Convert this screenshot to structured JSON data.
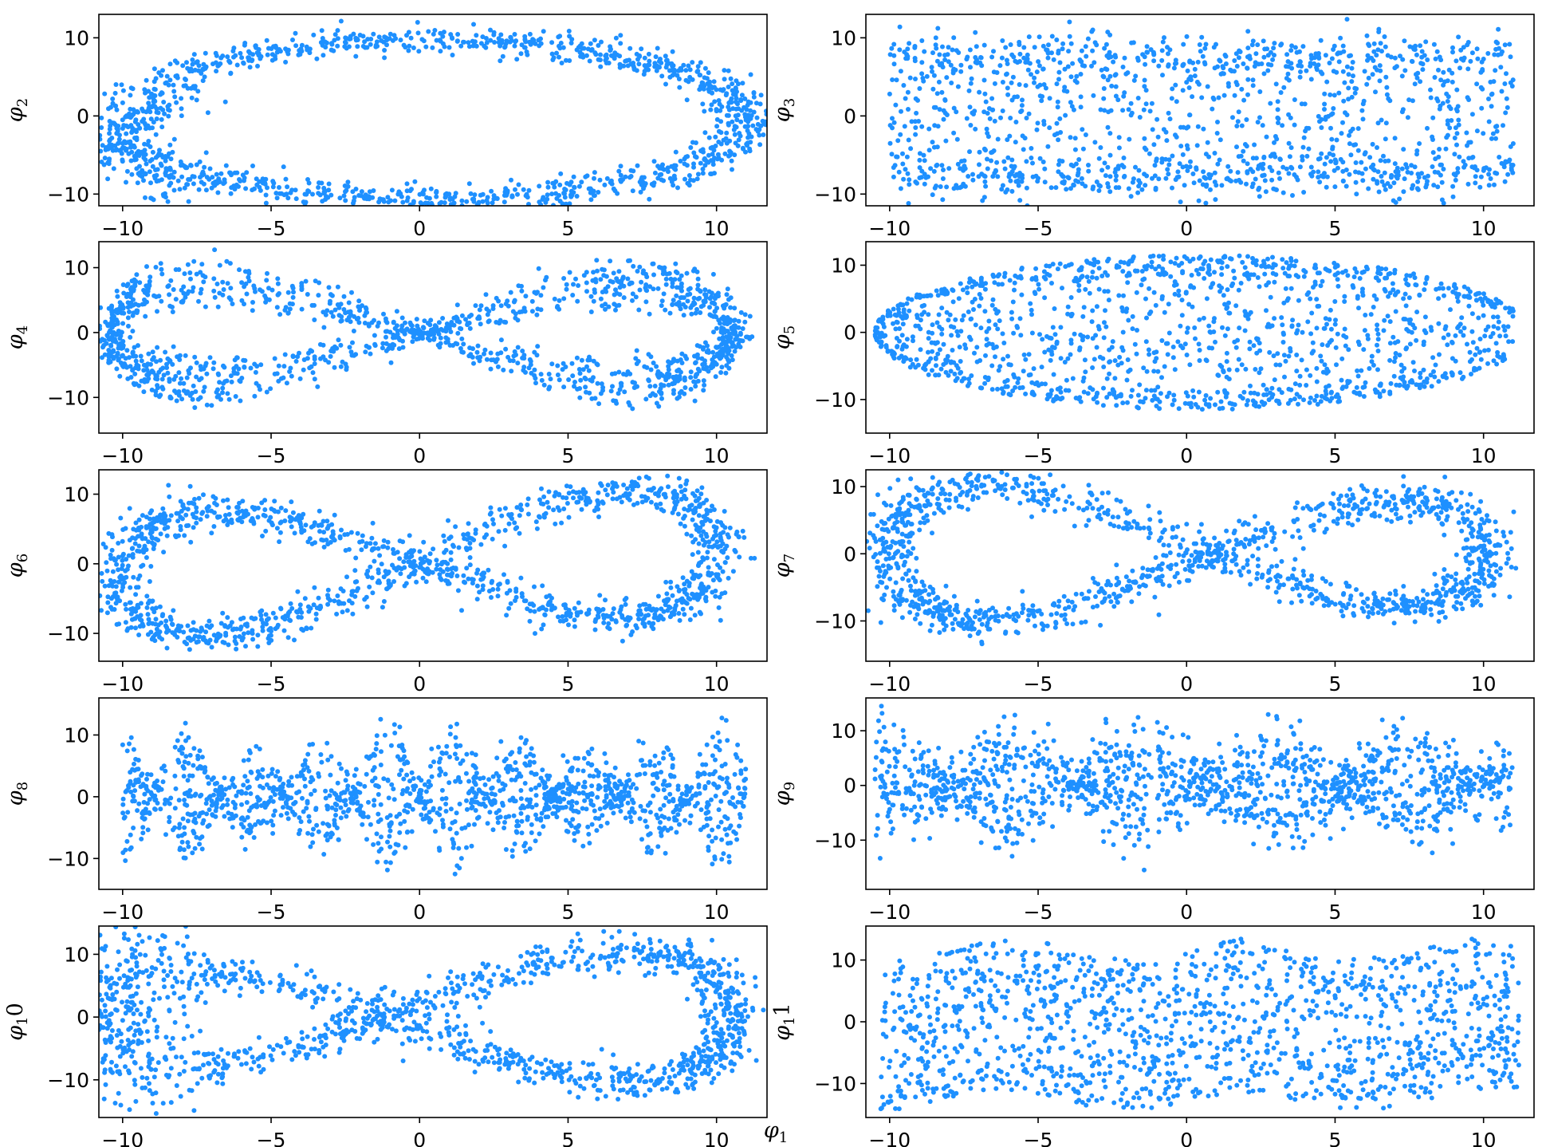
{
  "chart_data": [
    {
      "type": "scatter",
      "ylabel": {
        "symbol": "φ",
        "sub": "2",
        "suffix": ""
      },
      "xlim": [
        -10.8,
        11.7
      ],
      "ylim": [
        -11.5,
        13
      ],
      "xticks": [
        -10,
        -5,
        0,
        5,
        10
      ],
      "xtick_labels": [
        "−10",
        "−5",
        "0",
        "5",
        "10"
      ],
      "yticks": [
        -10,
        0,
        10
      ],
      "ytick_labels": [
        "−10",
        "0",
        "10"
      ],
      "color": "#1E90FF",
      "shape": "ellipse-ring",
      "n_points": 1400
    },
    {
      "type": "scatter",
      "ylabel": {
        "symbol": "φ",
        "sub": "3",
        "suffix": ""
      },
      "xlim": [
        -10.8,
        11.7
      ],
      "ylim": [
        -11.5,
        13
      ],
      "xticks": [
        -10,
        -5,
        0,
        5,
        10
      ],
      "xtick_labels": [
        "−10",
        "−5",
        "0",
        "5",
        "10"
      ],
      "yticks": [
        -10,
        0,
        10
      ],
      "ytick_labels": [
        "−10",
        "0",
        "10"
      ],
      "color": "#1E90FF",
      "shape": "filled-band",
      "n_points": 1400
    },
    {
      "type": "scatter",
      "ylabel": {
        "symbol": "φ",
        "sub": "4",
        "suffix": ""
      },
      "xlim": [
        -10.8,
        11.7
      ],
      "ylim": [
        -15.5,
        14
      ],
      "xticks": [
        -10,
        -5,
        0,
        5,
        10
      ],
      "xtick_labels": [
        "−10",
        "−5",
        "0",
        "5",
        "10"
      ],
      "yticks": [
        -10,
        0,
        10
      ],
      "ytick_labels": [
        "−10",
        "0",
        "10"
      ],
      "color": "#1E90FF",
      "shape": "figure-eight",
      "n_points": 1400
    },
    {
      "type": "scatter",
      "ylabel": {
        "symbol": "φ",
        "sub": "5",
        "suffix": ""
      },
      "xlim": [
        -10.8,
        11.7
      ],
      "ylim": [
        -15,
        13.5
      ],
      "xticks": [
        -10,
        -5,
        0,
        5,
        10
      ],
      "xtick_labels": [
        "−10",
        "−5",
        "0",
        "5",
        "10"
      ],
      "yticks": [
        -10,
        0,
        10
      ],
      "ytick_labels": [
        "−10",
        "0",
        "10"
      ],
      "color": "#1E90FF",
      "shape": "lens",
      "n_points": 1400
    },
    {
      "type": "scatter",
      "ylabel": {
        "symbol": "φ",
        "sub": "6",
        "suffix": ""
      },
      "xlim": [
        -10.8,
        11.7
      ],
      "ylim": [
        -14,
        13.5
      ],
      "xticks": [
        -10,
        -5,
        0,
        5,
        10
      ],
      "xtick_labels": [
        "−10",
        "−5",
        "0",
        "5",
        "10"
      ],
      "yticks": [
        -10,
        0,
        10
      ],
      "ytick_labels": [
        "−10",
        "0",
        "10"
      ],
      "color": "#1E90FF",
      "shape": "twisted-loop",
      "n_points": 1400
    },
    {
      "type": "scatter",
      "ylabel": {
        "symbol": "φ",
        "sub": "7",
        "suffix": ""
      },
      "xlim": [
        -10.8,
        11.7
      ],
      "ylim": [
        -16,
        12.5
      ],
      "xticks": [
        -10,
        -5,
        0,
        5,
        10
      ],
      "xtick_labels": [
        "−10",
        "−5",
        "0",
        "5",
        "10"
      ],
      "yticks": [
        -10,
        0,
        10
      ],
      "ytick_labels": [
        "−10",
        "0",
        "10"
      ],
      "color": "#1E90FF",
      "shape": "twisted-loop-2",
      "n_points": 1400
    },
    {
      "type": "scatter",
      "ylabel": {
        "symbol": "φ",
        "sub": "8",
        "suffix": ""
      },
      "xlim": [
        -10.8,
        11.7
      ],
      "ylim": [
        -15,
        16
      ],
      "xticks": [
        -10,
        -5,
        0,
        5,
        10
      ],
      "xtick_labels": [
        "−10",
        "−5",
        "0",
        "5",
        "10"
      ],
      "yticks": [
        -10,
        0,
        10
      ],
      "ytick_labels": [
        "−10",
        "0",
        "10"
      ],
      "color": "#1E90FF",
      "shape": "multi-lobe",
      "n_points": 1400
    },
    {
      "type": "scatter",
      "ylabel": {
        "symbol": "φ",
        "sub": "9",
        "suffix": ""
      },
      "xlim": [
        -10.8,
        11.7
      ],
      "ylim": [
        -19,
        16
      ],
      "xticks": [
        -10,
        -5,
        0,
        5,
        10
      ],
      "xtick_labels": [
        "−10",
        "−5",
        "0",
        "5",
        "10"
      ],
      "yticks": [
        -10,
        0,
        10
      ],
      "ytick_labels": [
        "−10",
        "0",
        "10"
      ],
      "color": "#1E90FF",
      "shape": "multi-lobe-2",
      "n_points": 1400
    },
    {
      "type": "scatter",
      "ylabel": {
        "symbol": "φ",
        "sub": "1",
        "suffix": "0"
      },
      "xlabel": {
        "symbol": "φ",
        "sub": "1",
        "suffix": ""
      },
      "xlim": [
        -10.8,
        11.7
      ],
      "ylim": [
        -16,
        14.5
      ],
      "xticks": [
        -10,
        -5,
        0,
        5,
        10
      ],
      "xtick_labels": [
        "−10",
        "−5",
        "0",
        "5",
        "10"
      ],
      "yticks": [
        -10,
        0,
        10
      ],
      "ytick_labels": [
        "−10",
        "0",
        "10"
      ],
      "color": "#1E90FF",
      "shape": "twisted-loop-3",
      "n_points": 1400
    },
    {
      "type": "scatter",
      "ylabel": {
        "symbol": "φ",
        "sub": "1",
        "suffix": "1"
      },
      "xlim": [
        -10.8,
        11.7
      ],
      "ylim": [
        -15.5,
        15.5
      ],
      "xticks": [
        -10,
        -5,
        0,
        5,
        10
      ],
      "xtick_labels": [
        "−10",
        "−5",
        "0",
        "5",
        "10"
      ],
      "yticks": [
        -10,
        0,
        10
      ],
      "ytick_labels": [
        "−10",
        "0",
        "10"
      ],
      "color": "#1E90FF",
      "shape": "wavy-band",
      "n_points": 1400
    }
  ]
}
